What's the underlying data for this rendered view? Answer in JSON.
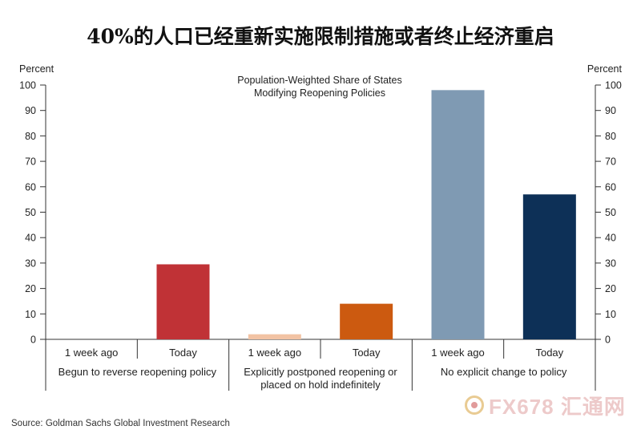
{
  "title": "40%的人口已经重新实施限制措施或者终止经济重启",
  "source": "Source: Goldman Sachs Global Investment Research",
  "watermark": "FX678 汇通网",
  "chart_data": {
    "type": "bar",
    "subtitle": [
      "Population-Weighted Share of States",
      "Modifying Reopening Policies"
    ],
    "ylabel_left": "Percent",
    "ylabel_right": "Percent",
    "ylim": [
      0,
      100
    ],
    "yticks": [
      0,
      10,
      20,
      30,
      40,
      50,
      60,
      70,
      80,
      90,
      100
    ],
    "grid": false,
    "groups": [
      {
        "label": [
          "Begun to reverse reopening policy"
        ],
        "bars": [
          {
            "category": "1 week ago",
            "value": 0,
            "color": "#e8a0a0"
          },
          {
            "category": "Today",
            "value": 29.5,
            "color": "#c03236"
          }
        ]
      },
      {
        "label": [
          "Explicitly postponed reopening or",
          "placed on hold indefinitely"
        ],
        "bars": [
          {
            "category": "1 week ago",
            "value": 2,
            "color": "#f2c3a4"
          },
          {
            "category": "Today",
            "value": 14,
            "color": "#cc5a10"
          }
        ]
      },
      {
        "label": [
          "No explicit change to policy"
        ],
        "bars": [
          {
            "category": "1 week ago",
            "value": 98,
            "color": "#7f9ab3"
          },
          {
            "category": "Today",
            "value": 57,
            "color": "#0d3057"
          }
        ]
      }
    ]
  }
}
